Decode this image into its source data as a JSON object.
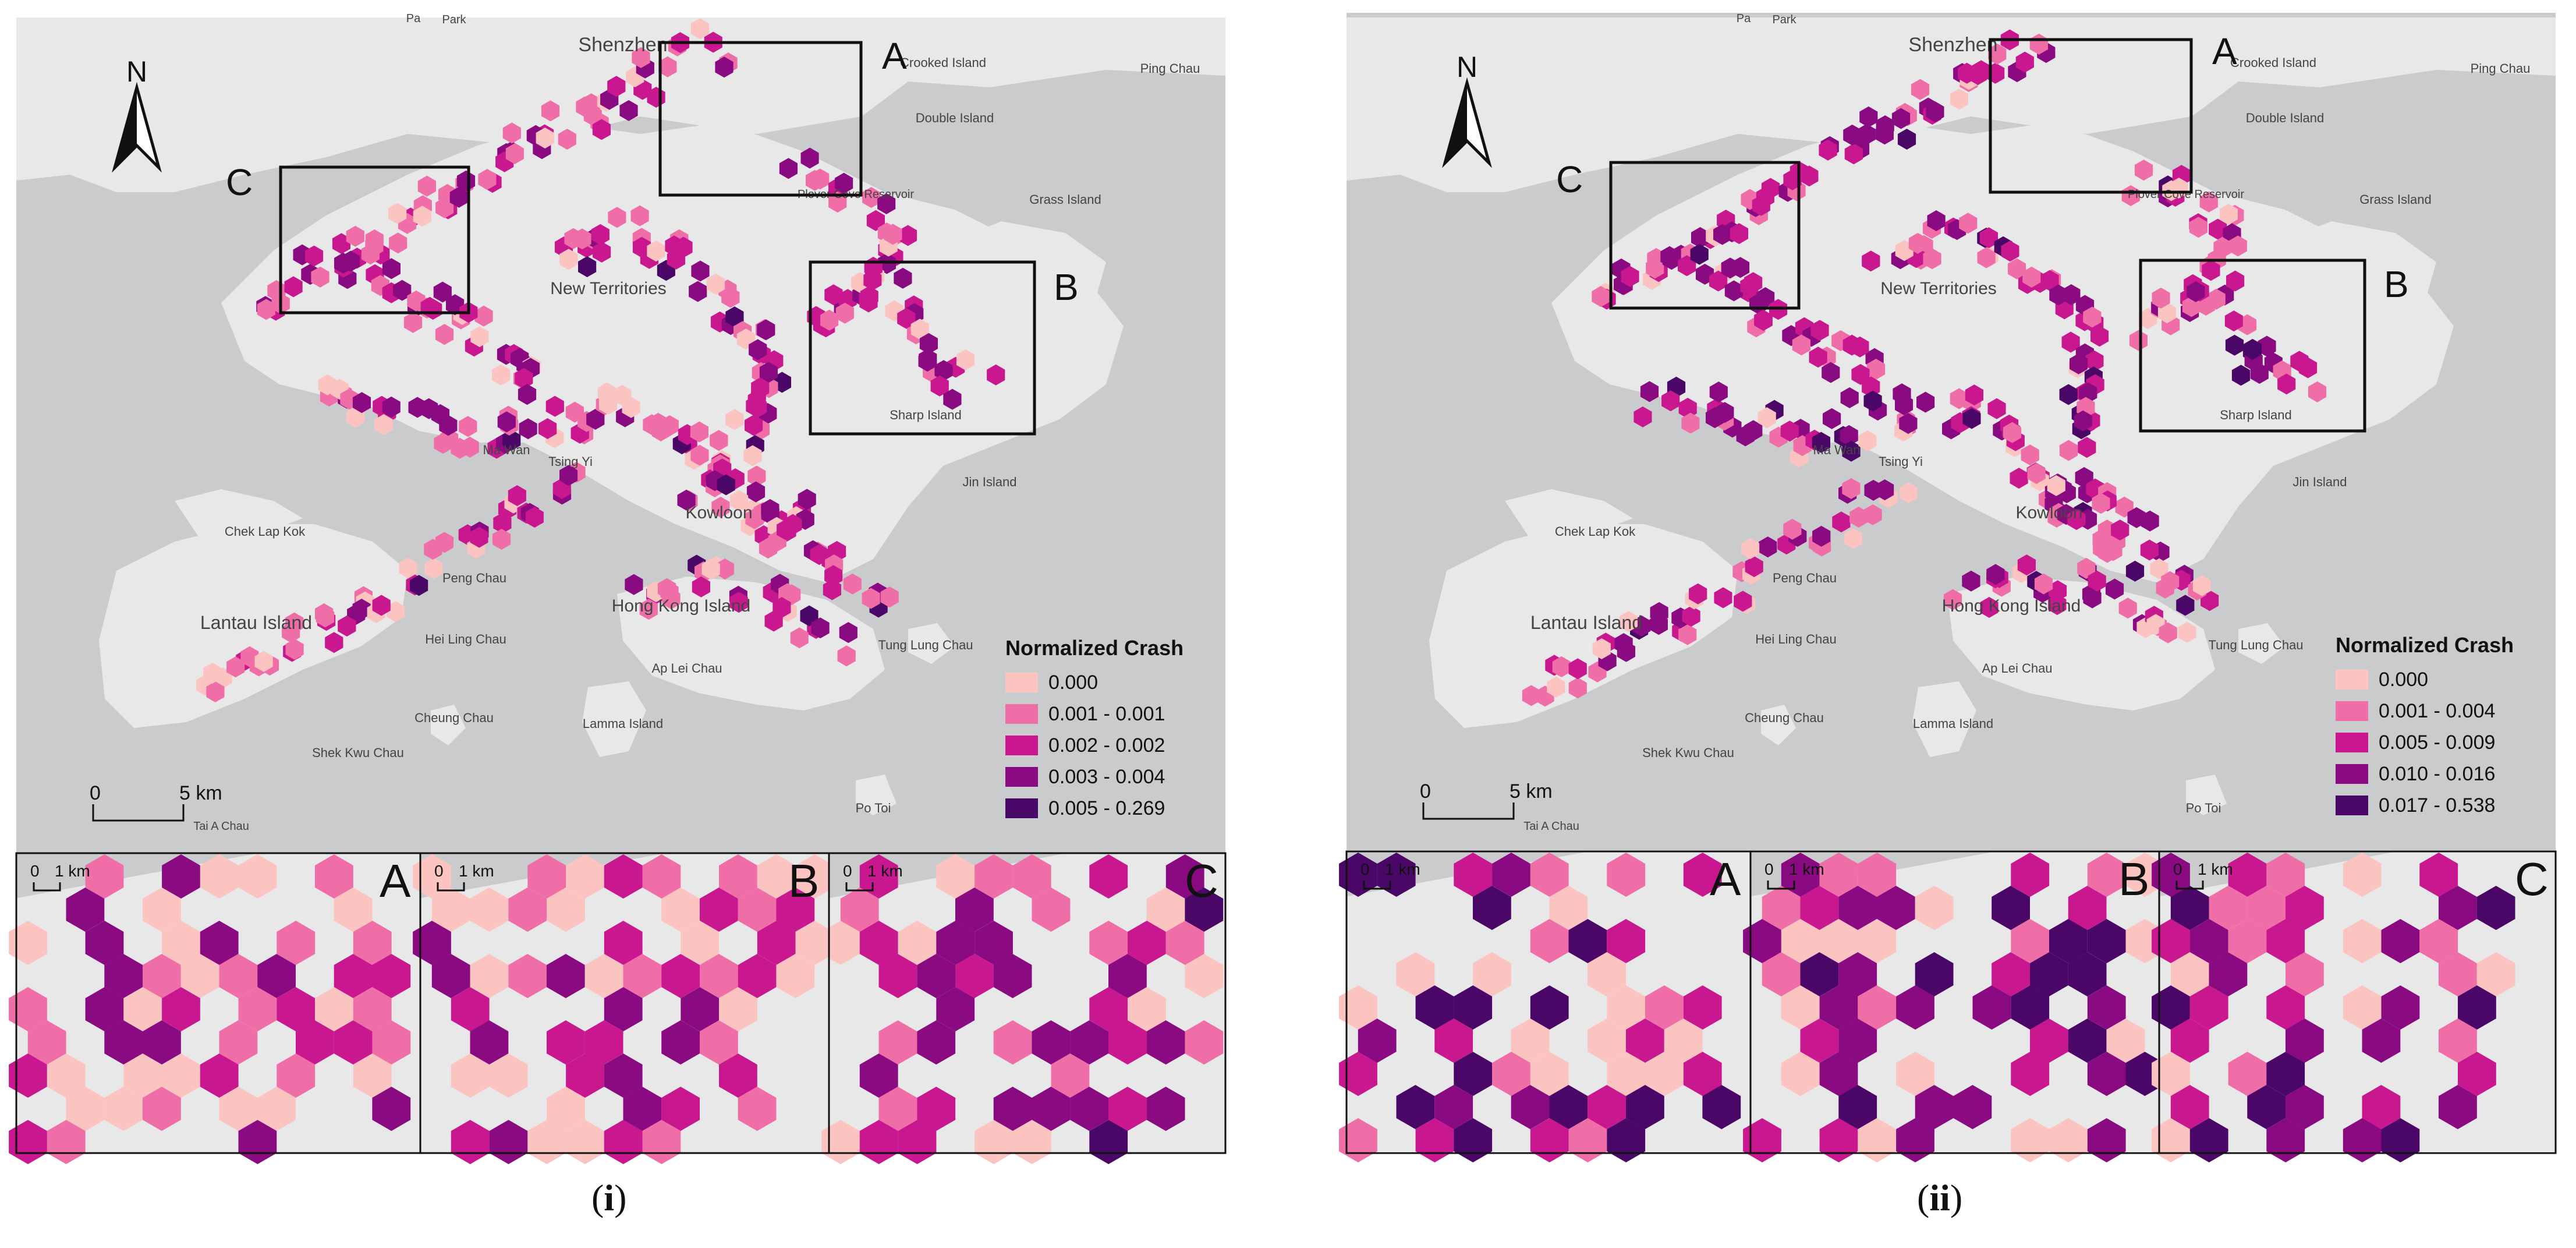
{
  "colors": {
    "water": "#c9cbcc",
    "land": "#e7e8e7",
    "box": "#111111",
    "classes": [
      "#fbc4c0",
      "#f06ea8",
      "#c9178f",
      "#8a0a82",
      "#4b0767"
    ]
  },
  "labels": {
    "north": "N",
    "place_names": [
      "Shenzhen",
      "New Territories",
      "Kowloon",
      "Hong Kong Island",
      "Lantau Island",
      "Chek Lap Kok",
      "Ma Wan",
      "Tsing Yi",
      "Peng Chau",
      "Hei Ling Chau",
      "Cheung Chau",
      "Lamma Island",
      "Ap Lei Chau",
      "Shek Kwu Chau",
      "Po Toi",
      "Tai A Chau",
      "Sharp Island",
      "Jin Island",
      "Tung Lung Chau",
      "Grass Island",
      "Crooked Island",
      "Double Island",
      "Ping Chau",
      "Plover Cove Reservoir",
      "Park",
      "Pa"
    ],
    "box_labels": [
      "A",
      "B",
      "C"
    ]
  },
  "panels": [
    {
      "caption_open": "(",
      "caption_main": "i",
      "caption_close": ")",
      "legend_title": "Normalized Crash",
      "legend_classes": [
        "0.000",
        "0.001 - 0.001",
        "0.002 - 0.002",
        "0.003 - 0.004",
        "0.005 - 0.269"
      ],
      "scale_main": {
        "zero": "0",
        "value": "5 km"
      },
      "scale_inset": {
        "zero": "0",
        "value": "1 km"
      }
    },
    {
      "caption_open": "(",
      "caption_main": "ii",
      "caption_close": ")",
      "legend_title": "Normalized Crash",
      "legend_classes": [
        "0.000",
        "0.001 - 0.004",
        "0.005 - 0.009",
        "0.010 - 0.016",
        "0.017 - 0.538"
      ],
      "scale_main": {
        "zero": "0",
        "value": "5 km"
      },
      "scale_inset": {
        "zero": "0",
        "value": "1 km"
      }
    }
  ]
}
